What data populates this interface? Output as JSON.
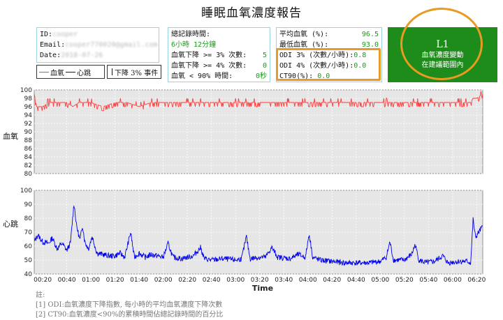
{
  "title": "睡眠血氧濃度報告",
  "user": {
    "id_label": "ID:",
    "id_value": "cooper",
    "email_label": "Email:",
    "email_value": "cooper770020@gmail.com",
    "date_label": "Date:",
    "date_value": "2018-07-26"
  },
  "record": {
    "total_label": "總記錄時間:",
    "total_value": "6小時 12分鐘",
    "drop3_label": "血氧下降 >= 3% 次數:",
    "drop3_value": "5",
    "drop4_label": "血氧下降 >= 4% 次數:",
    "drop4_value": "0",
    "below90_label": "血氧 < 90% 時間:",
    "below90_value": "0秒"
  },
  "stats": {
    "avg_label": "平均血氧 (%):",
    "avg_value": "96.5",
    "min_label": "最低血氧 (%):",
    "min_value": "93.0",
    "odi3_label": "ODI 3% (次數/小時):",
    "odi3_value": "0.8",
    "odi4_label": "ODI 4% (次數/小時):",
    "odi4_value": "0.0",
    "ct90_label": "CT90(%):",
    "ct90_value": "0.0"
  },
  "level": {
    "code": "L1",
    "desc_line1": "血氧濃度變動",
    "desc_line2": "在建議範圍內",
    "color": "#1e8c1a"
  },
  "legend": {
    "spo2": "血氧",
    "hr": "心跳",
    "event": "下降 3% 事件",
    "spo2_color": "#ff3b3b",
    "hr_color": "#0000ee"
  },
  "axes": {
    "spo2_ylabel": "血氧",
    "hr_ylabel": "心跳",
    "xlabel": "Time"
  },
  "chart_data": [
    {
      "type": "line",
      "name": "SpO2",
      "ylim": [
        80,
        100
      ],
      "yticks": [
        80,
        82,
        84,
        86,
        88,
        90,
        92,
        94,
        96,
        98,
        100
      ],
      "xticks": [
        "00:20",
        "00:40",
        "01:00",
        "01:20",
        "01:40",
        "02:00",
        "02:20",
        "02:40",
        "03:00",
        "03:20",
        "03:40",
        "04:00",
        "04:20",
        "04:40",
        "05:00",
        "05:20",
        "05:40",
        "06:00",
        "06:20"
      ],
      "xlim": [
        "00:13",
        "06:25"
      ],
      "grid": true,
      "baseline": 97,
      "points": [
        [
          "00:13",
          99
        ],
        [
          "00:15",
          96
        ],
        [
          "00:20",
          96
        ],
        [
          "00:25",
          97
        ],
        [
          "00:30",
          97
        ],
        [
          "00:40",
          97
        ],
        [
          "00:45",
          96
        ],
        [
          "00:50",
          97
        ],
        [
          "01:00",
          97
        ],
        [
          "01:10",
          96
        ],
        [
          "01:20",
          97
        ],
        [
          "01:30",
          97
        ],
        [
          "01:40",
          96
        ],
        [
          "01:50",
          97
        ],
        [
          "02:00",
          97
        ],
        [
          "02:20",
          97
        ],
        [
          "02:40",
          97
        ],
        [
          "03:00",
          97
        ],
        [
          "03:20",
          97
        ],
        [
          "03:40",
          97
        ],
        [
          "04:00",
          97
        ],
        [
          "04:20",
          97
        ],
        [
          "04:40",
          97
        ],
        [
          "05:00",
          97
        ],
        [
          "05:20",
          97
        ],
        [
          "05:40",
          97
        ],
        [
          "06:00",
          97
        ],
        [
          "06:15",
          97
        ],
        [
          "06:17",
          98
        ],
        [
          "06:20",
          98
        ],
        [
          "06:25",
          99
        ]
      ]
    },
    {
      "type": "line",
      "name": "Heart rate",
      "ylim": [
        40,
        100
      ],
      "yticks": [
        40,
        50,
        60,
        70,
        80,
        90,
        100
      ],
      "xticks": [
        "00:20",
        "00:40",
        "01:00",
        "01:20",
        "01:40",
        "02:00",
        "02:20",
        "02:40",
        "03:00",
        "03:20",
        "03:40",
        "04:00",
        "04:20",
        "04:40",
        "05:00",
        "05:20",
        "05:40",
        "06:00",
        "06:20"
      ],
      "xlim": [
        "00:13",
        "06:25"
      ],
      "grid": true,
      "points": [
        [
          "00:13",
          63
        ],
        [
          "00:16",
          68
        ],
        [
          "00:20",
          63
        ],
        [
          "00:25",
          62
        ],
        [
          "00:28",
          66
        ],
        [
          "00:32",
          58
        ],
        [
          "00:36",
          62
        ],
        [
          "00:40",
          57
        ],
        [
          "00:43",
          62
        ],
        [
          "00:46",
          91
        ],
        [
          "00:48",
          75
        ],
        [
          "00:51",
          64
        ],
        [
          "00:53",
          75
        ],
        [
          "00:55",
          63
        ],
        [
          "00:58",
          58
        ],
        [
          "01:01",
          67
        ],
        [
          "01:05",
          55
        ],
        [
          "01:10",
          54
        ],
        [
          "01:15",
          53
        ],
        [
          "01:20",
          53
        ],
        [
          "01:24",
          55
        ],
        [
          "01:28",
          52
        ],
        [
          "01:33",
          70
        ],
        [
          "01:36",
          52
        ],
        [
          "01:40",
          55
        ],
        [
          "01:45",
          52
        ],
        [
          "01:50",
          54
        ],
        [
          "02:00",
          52
        ],
        [
          "02:04",
          62
        ],
        [
          "02:08",
          52
        ],
        [
          "02:15",
          51
        ],
        [
          "02:25",
          53
        ],
        [
          "02:31",
          59
        ],
        [
          "02:34",
          51
        ],
        [
          "02:40",
          50
        ],
        [
          "02:50",
          51
        ],
        [
          "03:00",
          50
        ],
        [
          "03:05",
          51
        ],
        [
          "03:09",
          67
        ],
        [
          "03:12",
          51
        ],
        [
          "03:20",
          52
        ],
        [
          "03:25",
          52
        ],
        [
          "03:30",
          59
        ],
        [
          "03:35",
          52
        ],
        [
          "03:45",
          51
        ],
        [
          "03:52",
          54
        ],
        [
          "03:58",
          52
        ],
        [
          "04:01",
          69
        ],
        [
          "04:04",
          52
        ],
        [
          "04:10",
          50
        ],
        [
          "04:20",
          49
        ],
        [
          "04:30",
          48
        ],
        [
          "04:40",
          48
        ],
        [
          "04:50",
          48
        ],
        [
          "05:00",
          49
        ],
        [
          "05:05",
          52
        ],
        [
          "05:08",
          63
        ],
        [
          "05:11",
          50
        ],
        [
          "05:20",
          50
        ],
        [
          "05:26",
          54
        ],
        [
          "05:29",
          61
        ],
        [
          "05:32",
          50
        ],
        [
          "05:38",
          48
        ],
        [
          "05:45",
          49
        ],
        [
          "05:52",
          53
        ],
        [
          "05:56",
          48
        ],
        [
          "06:05",
          49
        ],
        [
          "06:12",
          49
        ],
        [
          "06:15",
          48
        ],
        [
          "06:17",
          79
        ],
        [
          "06:19",
          66
        ],
        [
          "06:21",
          69
        ],
        [
          "06:24",
          73
        ]
      ]
    }
  ],
  "notes": {
    "heading": "註:",
    "note1": "[1] ODI:血氧濃度下降指數, 每小時的平均血氧濃度下降次數",
    "note2": "[2] CT90:血氧濃度<90%的累積時間佔總記錄時間的百分比"
  }
}
